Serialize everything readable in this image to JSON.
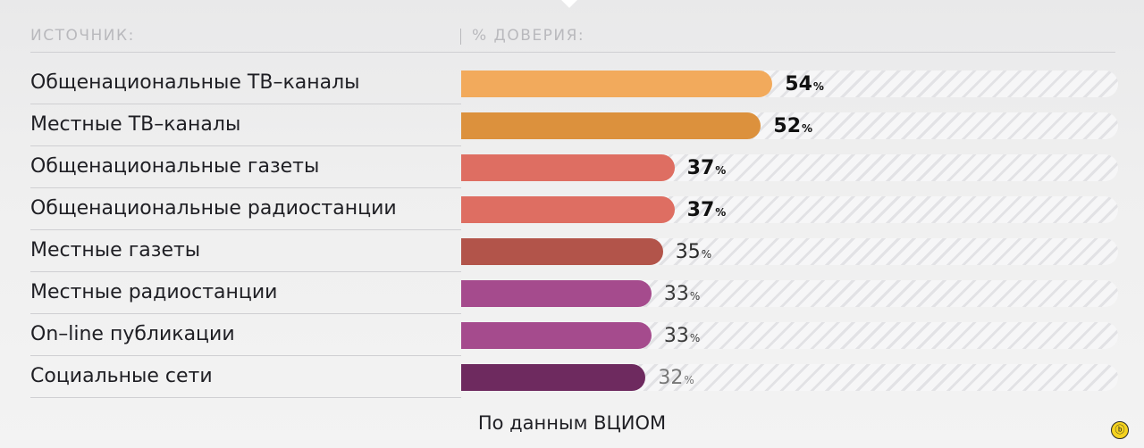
{
  "chart_data": {
    "type": "bar",
    "orientation": "horizontal",
    "header_source": "ИСТОЧНИК:",
    "header_value": "% ДОВЕРИЯ:",
    "categories": [
      "Общенациональные ТВ–каналы",
      "Местные ТВ–каналы",
      "Общенациональные газеты",
      "Общенациональные радиостанции",
      "Местные газеты",
      "Местные радиостанции",
      "On–line публикации",
      "Социальные сети"
    ],
    "values": [
      54,
      52,
      37,
      37,
      35,
      33,
      33,
      32
    ],
    "value_suffix": "%",
    "xlim": [
      0,
      100
    ],
    "bar_colors": [
      "#f2aa5c",
      "#dc913d",
      "#de6e62",
      "#de6e62",
      "#b2544a",
      "#a54b8d",
      "#a54b8d",
      "#6e2a5f"
    ],
    "label_colors": [
      "#111111",
      "#111111",
      "#111111",
      "#111111",
      "#2a2a2a",
      "#3a3a3a",
      "#3a3a3a",
      "#777777"
    ],
    "label_weights": [
      "bold",
      "bold",
      "bold",
      "bold",
      "normal",
      "normal",
      "normal",
      "normal"
    ],
    "source_note": "По данным ВЦИОМ"
  }
}
